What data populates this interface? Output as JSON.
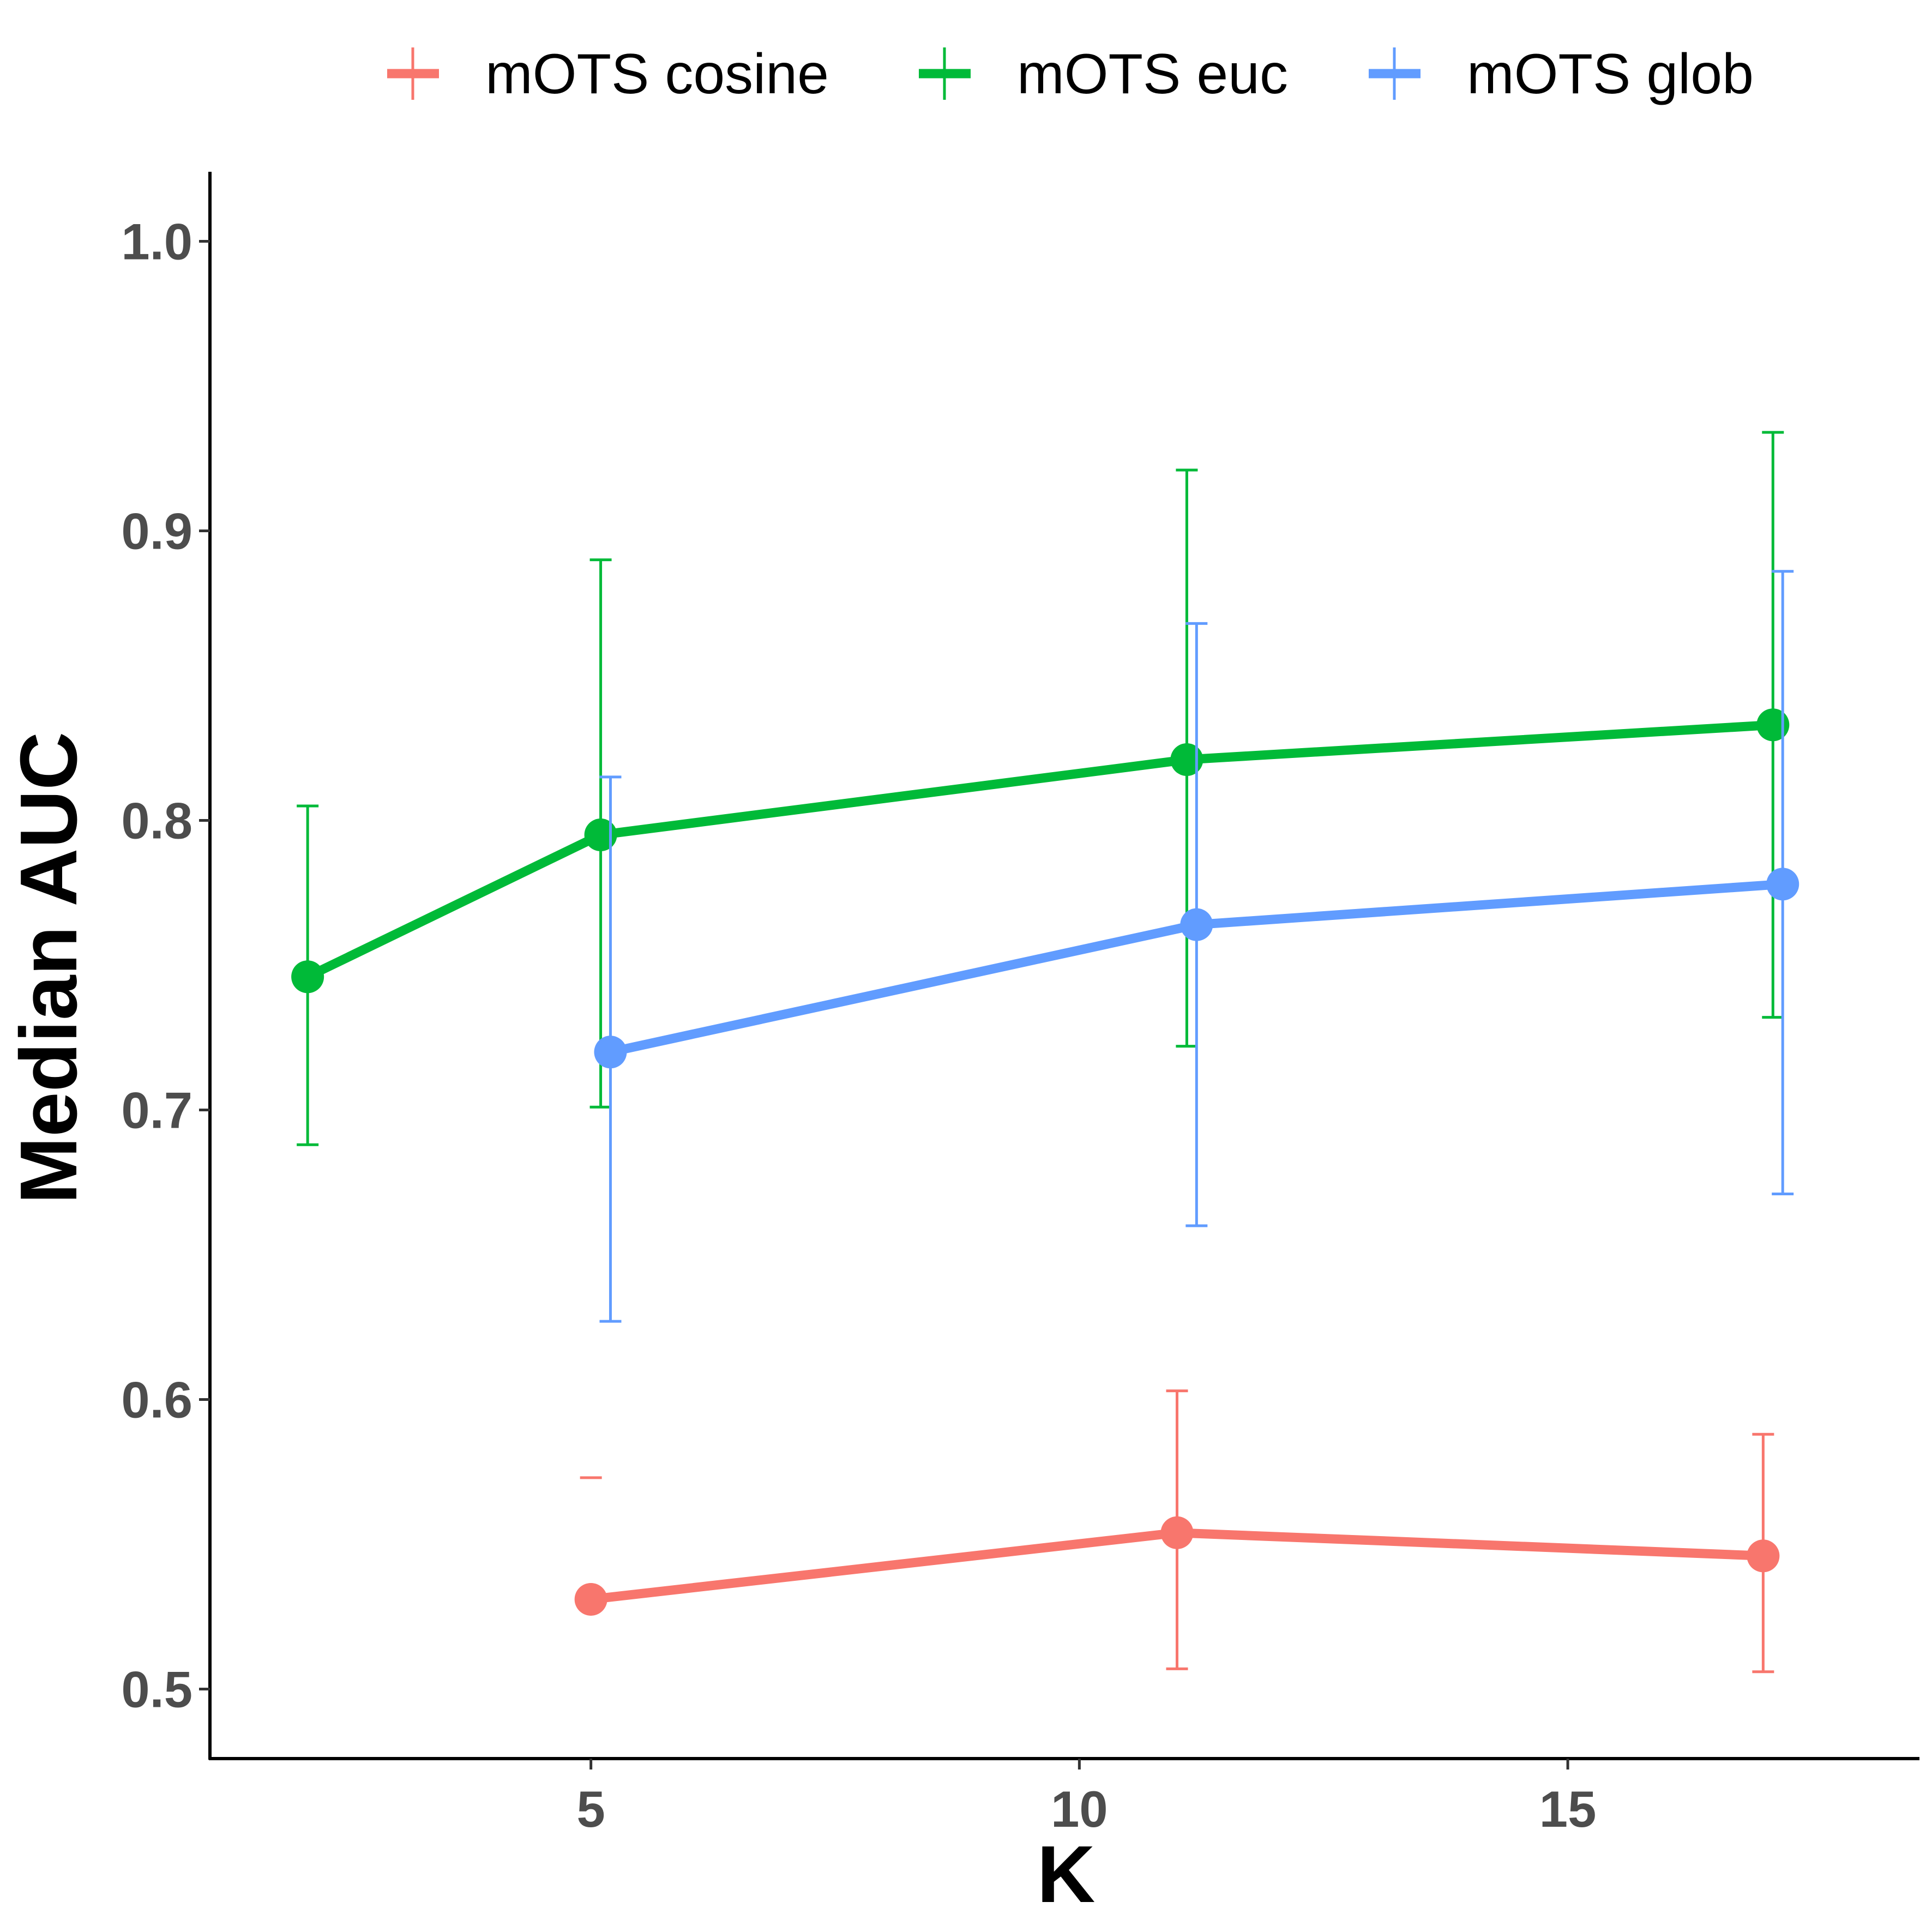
{
  "chart_data": {
    "type": "line",
    "xlabel": "K",
    "ylabel": "Median AUC",
    "xlim": [
      1.1,
      18.6
    ],
    "ylim": [
      0.476,
      1.024
    ],
    "x_ticks": [
      5,
      10,
      15
    ],
    "x_tick_labels": [
      "5",
      "10",
      "15"
    ],
    "y_ticks": [
      0.5,
      0.6,
      0.7,
      0.8,
      0.9,
      1.0
    ],
    "y_tick_labels": [
      "0.5",
      "0.6",
      "0.7",
      "0.8",
      "0.9",
      "1.0"
    ],
    "grid": false,
    "legend_position": "top",
    "legend": [
      "mOTS cosine",
      "mOTS euc",
      "mOTS glob"
    ],
    "series": [
      {
        "name": "mOTS cosine",
        "color": "#F8766D",
        "points": [
          {
            "x": 5.0,
            "y": 0.531,
            "ymin": 0.573,
            "ymax": 0.573
          },
          {
            "x": 11.0,
            "y": 0.554,
            "ymin": 0.507,
            "ymax": 0.603
          },
          {
            "x": 17.0,
            "y": 0.546,
            "ymin": 0.506,
            "ymax": 0.588
          }
        ]
      },
      {
        "name": "mOTS euc",
        "color": "#00BA38",
        "points": [
          {
            "x": 2.1,
            "y": 0.746,
            "ymin": 0.688,
            "ymax": 0.805
          },
          {
            "x": 5.1,
            "y": 0.795,
            "ymin": 0.701,
            "ymax": 0.89
          },
          {
            "x": 11.1,
            "y": 0.821,
            "ymin": 0.722,
            "ymax": 0.921
          },
          {
            "x": 17.1,
            "y": 0.833,
            "ymin": 0.732,
            "ymax": 0.934
          }
        ]
      },
      {
        "name": "mOTS glob",
        "color": "#619CFF",
        "points": [
          {
            "x": 5.2,
            "y": 0.72,
            "ymin": 0.627,
            "ymax": 0.815
          },
          {
            "x": 11.2,
            "y": 0.764,
            "ymin": 0.66,
            "ymax": 0.868
          },
          {
            "x": 17.2,
            "y": 0.778,
            "ymin": 0.671,
            "ymax": 0.886
          }
        ]
      }
    ]
  }
}
